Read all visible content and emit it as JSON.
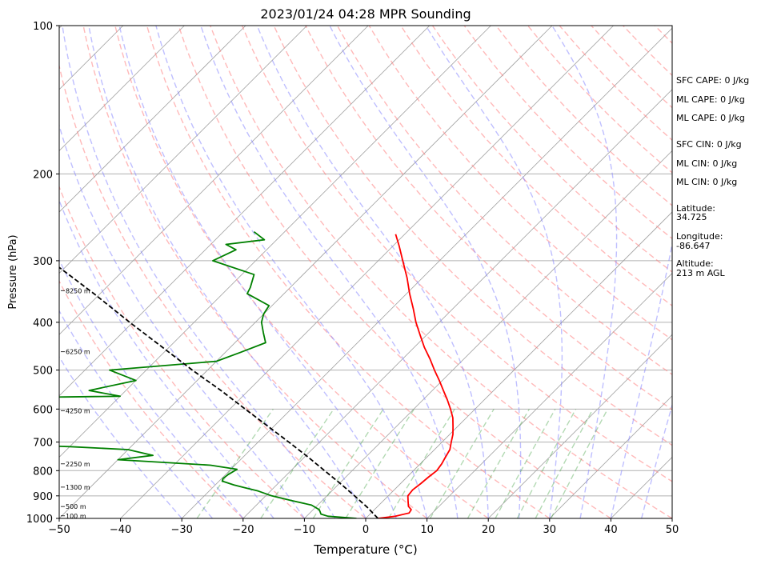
{
  "chart_data": {
    "type": "line",
    "title": "2023/01/24 04:28 MPR Sounding",
    "xlabel": "Temperature (°C)",
    "ylabel": "Pressure (hPa)",
    "xlim": [
      -50,
      50
    ],
    "ylim": [
      1000,
      100
    ],
    "y_scale": "log",
    "x_ticks": [
      -50,
      -40,
      -30,
      -20,
      -10,
      0,
      10,
      20,
      30,
      40,
      50
    ],
    "y_ticks": [
      1000,
      900,
      800,
      700,
      600,
      500,
      400,
      300,
      200,
      100
    ],
    "grid": true,
    "series": [
      {
        "color": "#ff0000",
        "points": [
          [
            1000,
            2.0
          ],
          [
            990,
            4.5
          ],
          [
            975,
            6.2
          ],
          [
            960,
            6.0
          ],
          [
            945,
            5.0
          ],
          [
            925,
            4.2
          ],
          [
            900,
            3.2
          ],
          [
            875,
            3.0
          ],
          [
            850,
            3.3
          ],
          [
            825,
            3.5
          ],
          [
            800,
            3.8
          ],
          [
            775,
            3.5
          ],
          [
            750,
            3.0
          ],
          [
            725,
            2.5
          ],
          [
            700,
            1.5
          ],
          [
            675,
            0.5
          ],
          [
            650,
            -0.8
          ],
          [
            625,
            -2.2
          ],
          [
            600,
            -4.0
          ],
          [
            575,
            -6.0
          ],
          [
            550,
            -8.2
          ],
          [
            525,
            -10.5
          ],
          [
            500,
            -13.0
          ],
          [
            475,
            -15.5
          ],
          [
            450,
            -18.3
          ],
          [
            425,
            -21.0
          ],
          [
            400,
            -23.8
          ],
          [
            375,
            -26.5
          ],
          [
            350,
            -29.5
          ],
          [
            325,
            -32.5
          ],
          [
            300,
            -36.0
          ],
          [
            280,
            -39.0
          ],
          [
            265,
            -41.5
          ]
        ]
      },
      {
        "color": "#008000",
        "points": [
          [
            1000,
            -1.5
          ],
          [
            995,
            -4.0
          ],
          [
            990,
            -6.5
          ],
          [
            980,
            -8.0
          ],
          [
            960,
            -9.0
          ],
          [
            940,
            -11.0
          ],
          [
            920,
            -15.0
          ],
          [
            900,
            -19.0
          ],
          [
            880,
            -22.0
          ],
          [
            865,
            -25.0
          ],
          [
            855,
            -27.0
          ],
          [
            840,
            -29.5
          ],
          [
            830,
            -29.8
          ],
          [
            815,
            -29.6
          ],
          [
            795,
            -29.0
          ],
          [
            780,
            -34.0
          ],
          [
            760,
            -50.0
          ],
          [
            745,
            -45.0
          ],
          [
            725,
            -50.0
          ],
          [
            715,
            -60.0
          ],
          [
            712,
            -65.0
          ],
          [
            710,
            -75.0
          ],
          [
            708,
            -85.0
          ],
          [
            706,
            -90.0
          ],
          [
            704,
            -94.0
          ],
          [
            570,
            -92.0
          ],
          [
            568,
            -80.0
          ],
          [
            567,
            -69.0
          ],
          [
            565,
            -60.0
          ],
          [
            550,
            -66.0
          ],
          [
            525,
            -60.0
          ],
          [
            500,
            -66.0
          ],
          [
            480,
            -50.0
          ],
          [
            460,
            -47.5
          ],
          [
            440,
            -45.0
          ],
          [
            420,
            -47.0
          ],
          [
            400,
            -49.0
          ],
          [
            385,
            -50.0
          ],
          [
            370,
            -50.5
          ],
          [
            350,
            -56.0
          ],
          [
            340,
            -56.5
          ],
          [
            320,
            -58.0
          ],
          [
            300,
            -67.0
          ],
          [
            285,
            -65.0
          ],
          [
            278,
            -67.5
          ],
          [
            272,
            -62.0
          ],
          [
            262,
            -65.0
          ]
        ]
      },
      {
        "color": "#000000",
        "points": [
          [
            1000,
            2.0
          ],
          [
            950,
            -1.5
          ],
          [
            900,
            -5.5
          ],
          [
            850,
            -9.8
          ],
          [
            800,
            -14.5
          ],
          [
            750,
            -19.5
          ],
          [
            700,
            -25.0
          ],
          [
            650,
            -31.0
          ],
          [
            600,
            -37.5
          ],
          [
            550,
            -44.5
          ],
          [
            500,
            -52.5
          ],
          [
            450,
            -61.0
          ],
          [
            400,
            -70.5
          ],
          [
            350,
            -81.0
          ],
          [
            325,
            -87.0
          ],
          [
            300,
            -93.5
          ],
          [
            275,
            -100.0
          ]
        ]
      }
    ],
    "height_labels": [
      {
        "text": "100 m",
        "p": 988
      },
      {
        "text": "500 m",
        "p": 946
      },
      {
        "text": "1300 m",
        "p": 864
      },
      {
        "text": "2250 m",
        "p": 775
      },
      {
        "text": "4250 m",
        "p": 605
      },
      {
        "text": "6250 m",
        "p": 459
      },
      {
        "text": "8250 m",
        "p": 345
      }
    ],
    "annotations": [
      "SFC CAPE: 0 J/kg",
      "ML CAPE: 0 J/kg",
      "ML CAPE: 0 J/kg",
      "SFC CIN: 0 J/kg",
      "ML CIN: 0 J/kg",
      "ML CIN: 0 J/kg",
      "Latitude:",
      "34.725",
      "Longitude:",
      "-86.647",
      "Altitude:",
      "213 m AGL"
    ]
  }
}
